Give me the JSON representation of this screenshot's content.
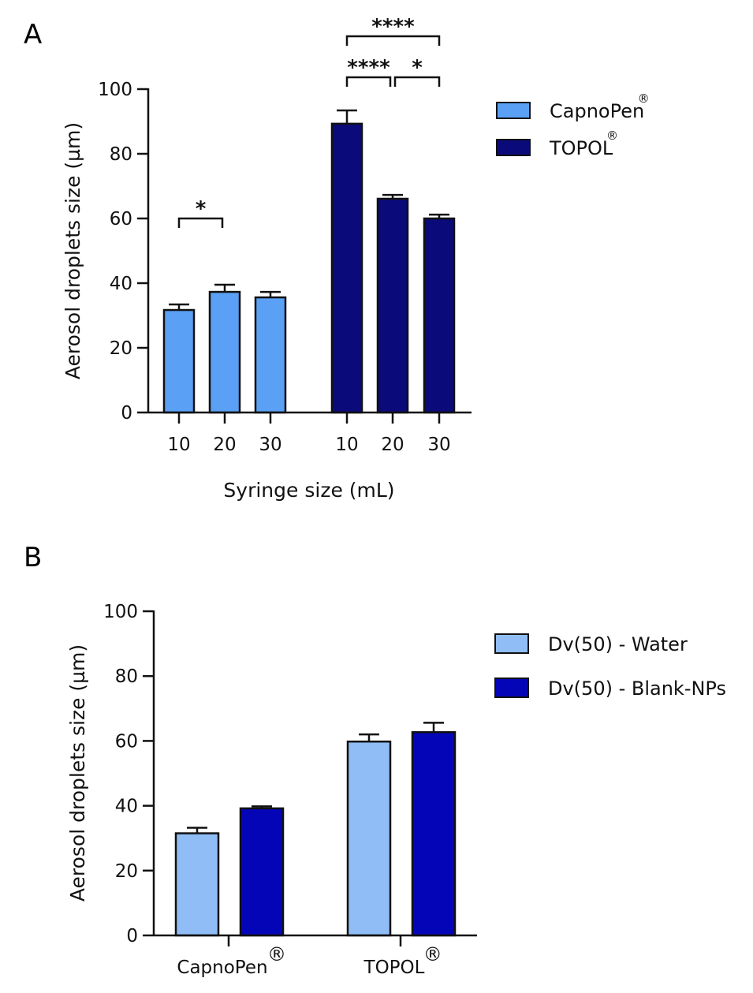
{
  "chart_data": [
    {
      "panel": "A",
      "type": "bar",
      "title": "",
      "xlabel": "Syringe size (mL)",
      "ylabel": "Aerosol droplets size (µm)",
      "ylim": [
        0,
        100
      ],
      "yticks": [
        0,
        20,
        40,
        60,
        80,
        100
      ],
      "grid": false,
      "legend_position": "right",
      "categories": [
        "10",
        "20",
        "30"
      ],
      "series": [
        {
          "name": "CapnoPen",
          "sup": "®",
          "color": "#5aa0f5",
          "values": [
            31.7,
            37.3,
            35.6
          ],
          "errors": [
            1.7,
            2.2,
            1.7
          ]
        },
        {
          "name": "TOPOL",
          "sup": "®",
          "color": "#0a0a7a",
          "values": [
            89.3,
            66.1,
            60.0
          ],
          "errors": [
            4.1,
            1.2,
            1.2
          ]
        }
      ],
      "significance": [
        {
          "series": 0,
          "from": 0,
          "to": 1,
          "label": "*",
          "level": 0
        },
        {
          "series": 1,
          "from": 0,
          "to": 1,
          "label": "****",
          "level": 0
        },
        {
          "series": 1,
          "from": 1,
          "to": 2,
          "label": "*",
          "level": 0
        },
        {
          "series": 1,
          "from": 0,
          "to": 2,
          "label": "****",
          "level": 1
        }
      ]
    },
    {
      "panel": "B",
      "type": "bar",
      "title": "",
      "xlabel": "",
      "ylabel": "Aerosol droplets size (µm)",
      "ylim": [
        0,
        100
      ],
      "yticks": [
        0,
        20,
        40,
        60,
        80,
        100
      ],
      "grid": false,
      "legend_position": "right",
      "categories": [
        "CapnoPen",
        "TOPOL"
      ],
      "category_sup": "®",
      "series": [
        {
          "name": "Dv(50) - Water",
          "color": "#90bdf5",
          "values": [
            31.5,
            59.8
          ],
          "errors": [
            1.7,
            2.2
          ]
        },
        {
          "name": "Dv(50) - Blank-NPs",
          "color": "#0505b8",
          "values": [
            39.2,
            62.7
          ],
          "errors": [
            0.6,
            2.9
          ]
        }
      ]
    }
  ]
}
